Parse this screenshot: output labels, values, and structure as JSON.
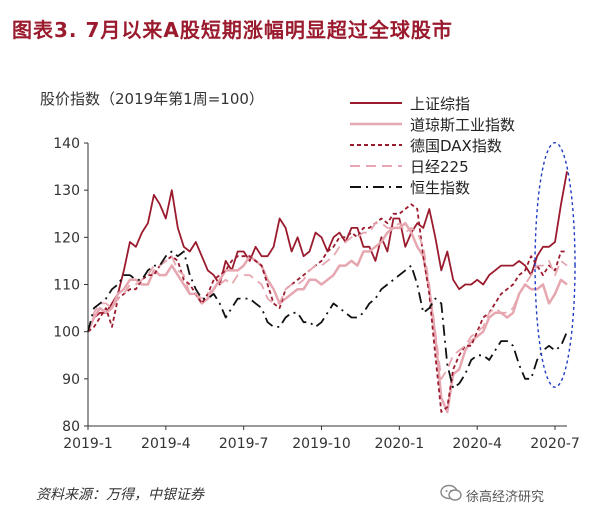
{
  "title": "图表3. 7月以来A股短期涨幅明显超过全球股市",
  "source": "资料来源：万得，中银证券",
  "brand": "徐高经济研究",
  "brand_icon": "wechat-icon",
  "chart_data": {
    "type": "line",
    "ylabel": "股价指数（2019年第1周=100）",
    "ylim": [
      80,
      140
    ],
    "yticks": [
      80,
      90,
      100,
      110,
      120,
      130,
      140
    ],
    "xlim": [
      0,
      80
    ],
    "xtick_positions": [
      0,
      13,
      26,
      39,
      52,
      65,
      78
    ],
    "xticks": [
      "2019-1",
      "2019-4",
      "2019-7",
      "2019-10",
      "2020-1",
      "2020-4",
      "2020-7"
    ],
    "grid": false,
    "legend_position": "top-right",
    "highlight": "dashed ellipse around 2020-7",
    "series": [
      {
        "name": "上证综指",
        "color": "#9b1b2e",
        "dash": "solid",
        "values": [
          100,
          103,
          104,
          104,
          106,
          108,
          113,
          119,
          118,
          121,
          123,
          129,
          127,
          124,
          130,
          122,
          118,
          117,
          119,
          116,
          113,
          112,
          110,
          115,
          113,
          117,
          117,
          115,
          118,
          116,
          116,
          118,
          124,
          122,
          117,
          120,
          116,
          117,
          121,
          120,
          117,
          120,
          121,
          119,
          122,
          122,
          118,
          118,
          115,
          120,
          117,
          124,
          124,
          118,
          121,
          123,
          122,
          126,
          120,
          113,
          117,
          111,
          109,
          110,
          110,
          111,
          110,
          112,
          113,
          114,
          114,
          114,
          115,
          114,
          112,
          116,
          118,
          118,
          119,
          127,
          134
        ]
      },
      {
        "name": "道琼斯工业指数",
        "color": "#e6a7b0",
        "dash": "solid",
        "width": 2.5,
        "values": [
          100,
          103,
          105,
          104,
          105,
          108,
          109,
          111,
          111,
          110,
          110,
          113,
          112,
          112,
          114,
          112,
          110,
          108,
          108,
          106,
          107,
          109,
          111,
          113,
          113,
          113,
          114,
          116,
          115,
          114,
          111,
          109,
          106,
          107,
          108,
          109,
          109,
          111,
          111,
          110,
          111,
          112,
          114,
          114,
          115,
          114,
          117,
          117,
          118,
          119,
          121,
          122,
          122,
          123,
          121,
          118,
          116,
          109,
          99,
          86,
          83,
          91,
          92,
          96,
          98,
          99,
          100,
          103,
          104,
          104,
          103,
          104,
          108,
          110,
          109,
          109,
          110,
          106,
          108,
          111,
          110
        ]
      },
      {
        "name": "德国DAX指数",
        "color": "#9b1b2e",
        "dash": "dotted",
        "values": [
          100,
          101,
          103,
          105,
          101,
          107,
          108,
          109,
          109,
          111,
          112,
          112,
          114,
          115,
          116,
          115,
          111,
          110,
          108,
          106,
          108,
          111,
          112,
          113,
          115,
          116,
          116,
          116,
          115,
          114,
          110,
          106,
          105,
          109,
          110,
          111,
          112,
          113,
          114,
          115,
          117,
          118,
          120,
          120,
          121,
          120,
          122,
          122,
          123,
          124,
          123,
          125,
          125,
          126,
          127,
          126,
          116,
          108,
          95,
          83,
          84,
          92,
          95,
          97,
          97,
          100,
          103,
          104,
          106,
          108,
          109,
          110,
          112,
          113,
          116,
          114,
          112,
          114,
          113,
          117,
          117
        ]
      },
      {
        "name": "日经225",
        "color": "#e6a7b0",
        "dash": "dashed",
        "values": [
          100,
          104,
          106,
          106,
          105,
          107,
          108,
          110,
          110,
          111,
          112,
          114,
          114,
          115,
          116,
          113,
          112,
          108,
          108,
          107,
          108,
          109,
          110,
          111,
          110,
          112,
          112,
          112,
          111,
          110,
          107,
          106,
          106,
          109,
          110,
          110,
          111,
          113,
          114,
          114,
          115,
          116,
          118,
          119,
          120,
          120,
          121,
          121,
          123,
          123,
          122,
          122,
          123,
          121,
          122,
          121,
          118,
          110,
          100,
          90,
          92,
          95,
          96,
          97,
          99,
          100,
          101,
          104,
          105,
          104,
          104,
          105,
          108,
          110,
          112,
          114,
          114,
          115,
          112,
          115,
          114
        ]
      },
      {
        "name": "恒生指数",
        "color": "#111111",
        "dash": "dashdot",
        "values": [
          100,
          105,
          106,
          107,
          109,
          110,
          112,
          112,
          111,
          111,
          113,
          114,
          114,
          116,
          117,
          116,
          117,
          112,
          109,
          107,
          107,
          108,
          106,
          103,
          105,
          107,
          107,
          107,
          106,
          105,
          102,
          101,
          101,
          103,
          104,
          104,
          102,
          102,
          101,
          102,
          104,
          106,
          105,
          104,
          103,
          103,
          104,
          106,
          107,
          109,
          110,
          111,
          112,
          113,
          114,
          110,
          104,
          105,
          107,
          106,
          93,
          88,
          89,
          91,
          94,
          95,
          95,
          94,
          96,
          98,
          98,
          97,
          93,
          90,
          90,
          94,
          96,
          97,
          96,
          97,
          100
        ]
      }
    ]
  }
}
